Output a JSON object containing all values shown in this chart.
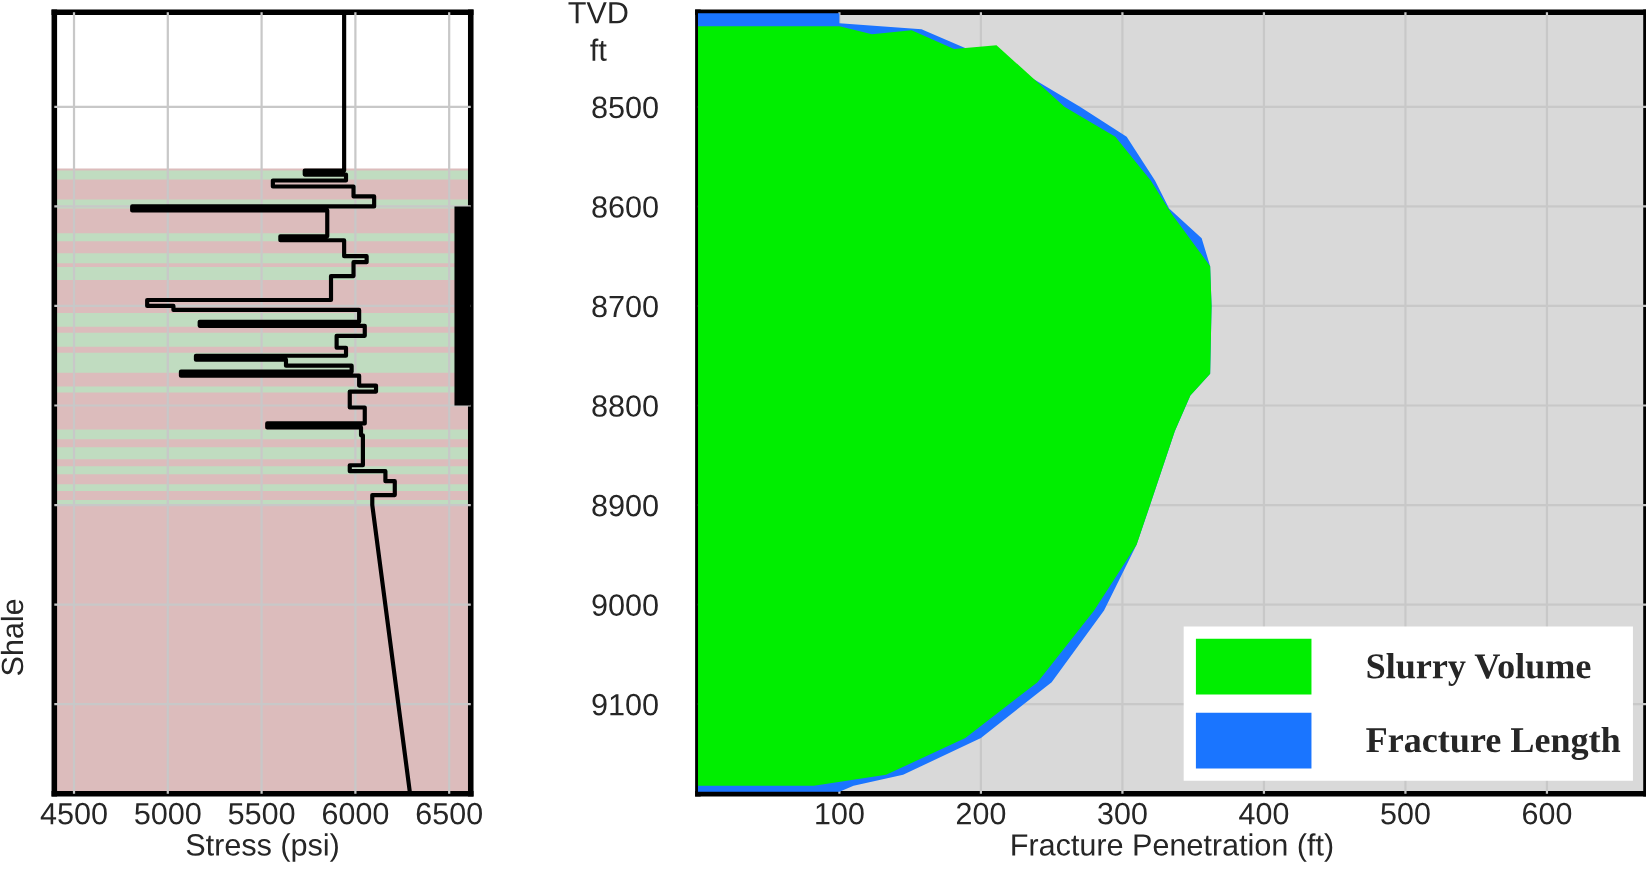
{
  "chart_data": [
    {
      "type": "line",
      "orientation": "horizontal",
      "xlabel": "Stress (psi)",
      "ylabel": "Shale",
      "xlim": [
        4395,
        6615
      ],
      "xticks": [
        4500,
        5000,
        5500,
        6000,
        6500
      ],
      "ylim": [
        9190,
        8405
      ],
      "yticks": [
        8500,
        8600,
        8700,
        8800,
        8900,
        9000,
        9100
      ],
      "tick_labels": "x",
      "grid": true,
      "series": [
        {
          "color": "#000000",
          "x": [
            8404,
            8564,
            8564,
            8568,
            8568,
            8574,
            8574,
            8580,
            8580,
            8590,
            8590,
            8600,
            8600,
            8604,
            8604,
            8630,
            8630,
            8634,
            8634,
            8650,
            8650,
            8656,
            8656,
            8670,
            8670,
            8694,
            8694,
            8700,
            8700,
            8704,
            8704,
            8716,
            8716,
            8720,
            8720,
            8730,
            8730,
            8742,
            8742,
            8750,
            8750,
            8754,
            8754,
            8760,
            8760,
            8766,
            8766,
            8770,
            8770,
            8780,
            8780,
            8786,
            8786,
            8802,
            8802,
            8818,
            8818,
            8822,
            8822,
            8830,
            8830,
            8860,
            8860,
            8866,
            8866,
            8876,
            8876,
            8890,
            8890,
            8900,
            9188
          ],
          "values": [
            5940,
            5940,
            5730,
            5730,
            5950,
            5950,
            5560,
            5560,
            5990,
            5990,
            6100,
            6100,
            4810,
            4810,
            5850,
            5850,
            5600,
            5600,
            5940,
            5940,
            6060,
            6060,
            5990,
            5990,
            5870,
            5870,
            4890,
            4890,
            5030,
            5030,
            6020,
            6020,
            5170,
            5170,
            6050,
            6050,
            5900,
            5900,
            5950,
            5950,
            5150,
            5150,
            5630,
            5630,
            5980,
            5980,
            5070,
            5070,
            6020,
            6020,
            6110,
            6110,
            5970,
            5970,
            6050,
            6050,
            5530,
            5530,
            6030,
            6030,
            6040,
            6040,
            5970,
            5970,
            6160,
            6160,
            6210,
            6210,
            6090,
            6090,
            6290
          ]
        },
        {
          "color": "#000000",
          "x": [
            8600,
            8800
          ],
          "values": [
            6580,
            6580
          ]
        }
      ],
      "bands": [
        {
          "axis": "y",
          "from": 8562,
          "to": 9190,
          "color": "#dcbcbc"
        },
        {
          "axis": "y",
          "from": 8564,
          "to": 8573,
          "color": "#c0dcc0"
        },
        {
          "axis": "y",
          "from": 8593,
          "to": 8602,
          "color": "#c0dcc0"
        },
        {
          "axis": "y",
          "from": 8627,
          "to": 8635,
          "color": "#c0dcc0"
        },
        {
          "axis": "y",
          "from": 8647,
          "to": 8657,
          "color": "#c0dcc0"
        },
        {
          "axis": "y",
          "from": 8661,
          "to": 8674,
          "color": "#c0dcc0"
        },
        {
          "axis": "y",
          "from": 8707,
          "to": 8721,
          "color": "#c0dcc0"
        },
        {
          "axis": "y",
          "from": 8727,
          "to": 8741,
          "color": "#c0dcc0"
        },
        {
          "axis": "y",
          "from": 8747,
          "to": 8767,
          "color": "#c0dcc0"
        },
        {
          "axis": "y",
          "from": 8781,
          "to": 8787,
          "color": "#c0dcc0"
        },
        {
          "axis": "y",
          "from": 8824,
          "to": 8834,
          "color": "#c0dcc0"
        },
        {
          "axis": "y",
          "from": 8842,
          "to": 8854,
          "color": "#c0dcc0"
        },
        {
          "axis": "y",
          "from": 8861,
          "to": 8869,
          "color": "#c0dcc0"
        },
        {
          "axis": "y",
          "from": 8879,
          "to": 8886,
          "color": "#c0dcc0"
        },
        {
          "axis": "y",
          "from": 8895,
          "to": 8901,
          "color": "#c0dcc0"
        }
      ]
    },
    {
      "type": "area",
      "orientation": "horizontal",
      "xlabel": "Fracture Penetration (ft)",
      "ylabel": "TVD\nft",
      "xlim": [
        0,
        670
      ],
      "xticks": [
        100,
        200,
        300,
        400,
        500,
        600
      ],
      "ylim": [
        9190,
        8405
      ],
      "yticks": [
        8500,
        8600,
        8700,
        8800,
        8900,
        9000,
        9100
      ],
      "grid": true,
      "legend": "bottom right",
      "series": [
        {
          "name": "Slurry Volume",
          "color": "#00ee00",
          "x": [
            8419,
            8427,
            8423,
            8442,
            8438,
            8500,
            8530,
            8574,
            8608,
            8660,
            8700,
            8768,
            8790,
            8826,
            8898,
            8940,
            9006,
            9078,
            9134,
            9171,
            9182
          ],
          "values": [
            100,
            123,
            151,
            181,
            211,
            259,
            295,
            320,
            335,
            362,
            363,
            362,
            348,
            337,
            320,
            310,
            280,
            240,
            189,
            133,
            82
          ]
        },
        {
          "name": "Fracture Length",
          "color": "#1a75ff",
          "x": [
            8406,
            8416,
            8422,
            8466,
            8500,
            8530,
            8574,
            8602,
            8632,
            8660,
            8700,
            8768,
            8790,
            8826,
            8898,
            8940,
            9006,
            9078,
            9134,
            9171,
            9182,
            9188
          ],
          "values": [
            100,
            100,
            158,
            230,
            270,
            303,
            323,
            333,
            356,
            362,
            363,
            362,
            348,
            337,
            320,
            310,
            287,
            250,
            200,
            145,
            110,
            100
          ]
        }
      ]
    }
  ]
}
